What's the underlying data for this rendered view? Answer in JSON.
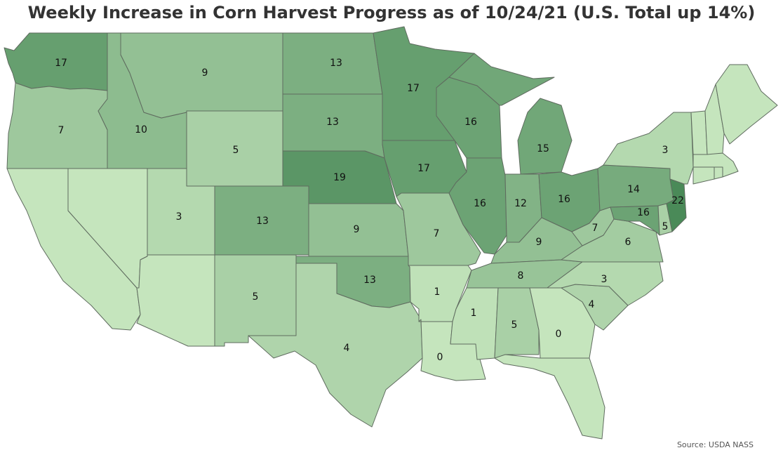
{
  "title": "Weekly Increase in Corn Harvest Progress as of 10/24/21 (U.S. Total up 14%)",
  "source": "Source: USDA NASS",
  "color_scale": {
    "min": 0,
    "max": 22,
    "min_color": "#c5e5bd",
    "max_color": "#4a8a58"
  },
  "states": [
    {
      "id": "WA",
      "value": 17
    },
    {
      "id": "OR",
      "value": 7
    },
    {
      "id": "CA",
      "value": null
    },
    {
      "id": "NV",
      "value": null
    },
    {
      "id": "ID",
      "value": 10
    },
    {
      "id": "MT",
      "value": 9
    },
    {
      "id": "WY",
      "value": 5
    },
    {
      "id": "UT",
      "value": 3
    },
    {
      "id": "AZ",
      "value": null
    },
    {
      "id": "CO",
      "value": 13
    },
    {
      "id": "NM",
      "value": 5
    },
    {
      "id": "ND",
      "value": 13
    },
    {
      "id": "SD",
      "value": 13
    },
    {
      "id": "NE",
      "value": 19
    },
    {
      "id": "KS",
      "value": 9
    },
    {
      "id": "OK",
      "value": 13
    },
    {
      "id": "TX",
      "value": 4
    },
    {
      "id": "MN",
      "value": 17
    },
    {
      "id": "IA",
      "value": 17
    },
    {
      "id": "MO",
      "value": 7
    },
    {
      "id": "AR",
      "value": 1
    },
    {
      "id": "LA",
      "value": 0
    },
    {
      "id": "WI",
      "value": 16
    },
    {
      "id": "IL",
      "value": 16
    },
    {
      "id": "MI",
      "value": 15
    },
    {
      "id": "IN",
      "value": 12
    },
    {
      "id": "OH",
      "value": 16
    },
    {
      "id": "KY",
      "value": 9
    },
    {
      "id": "TN",
      "value": 8
    },
    {
      "id": "MS",
      "value": 1
    },
    {
      "id": "AL",
      "value": 5
    },
    {
      "id": "GA",
      "value": 0
    },
    {
      "id": "FL",
      "value": null
    },
    {
      "id": "SC",
      "value": 4
    },
    {
      "id": "NC",
      "value": 3
    },
    {
      "id": "VA",
      "value": 6
    },
    {
      "id": "WV",
      "value": 7
    },
    {
      "id": "MD",
      "value": 16
    },
    {
      "id": "DE",
      "value": 5
    },
    {
      "id": "PA",
      "value": 14
    },
    {
      "id": "NJ",
      "value": 22
    },
    {
      "id": "NY",
      "value": 3
    },
    {
      "id": "CT",
      "value": null
    },
    {
      "id": "RI",
      "value": null
    },
    {
      "id": "MA",
      "value": null
    },
    {
      "id": "VT",
      "value": null
    },
    {
      "id": "NH",
      "value": null
    },
    {
      "id": "ME",
      "value": null
    }
  ]
}
